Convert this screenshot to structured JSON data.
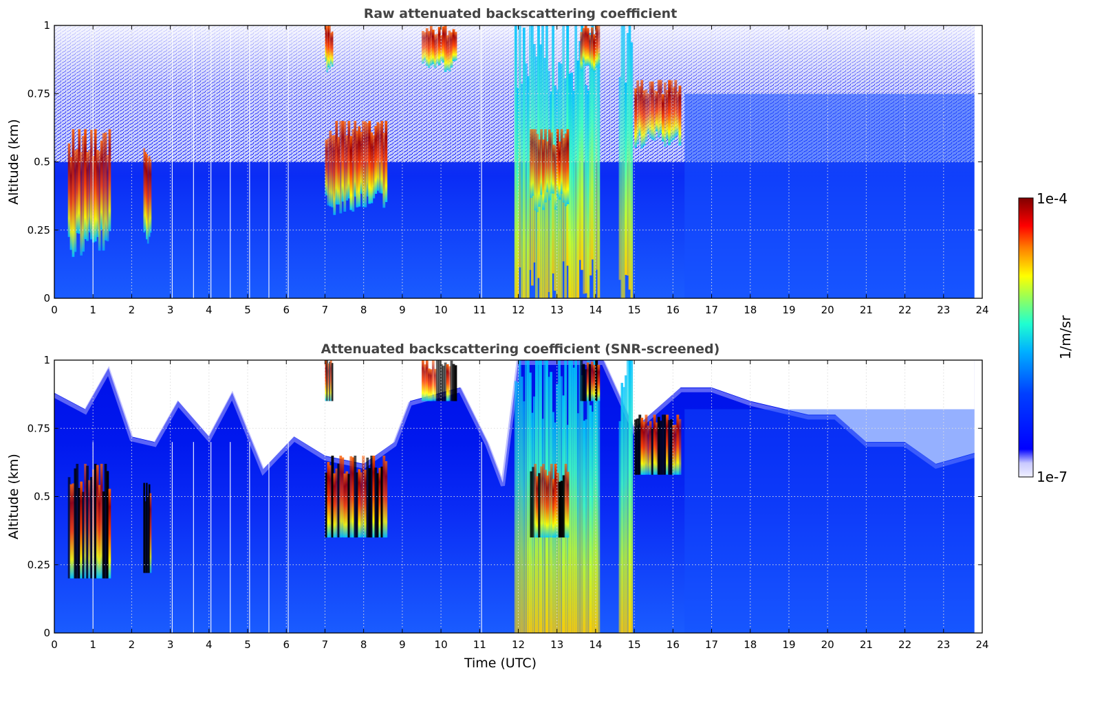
{
  "chart_data": [
    {
      "type": "heatmap",
      "title": "Raw attenuated backscattering coefficient",
      "xlabel": "",
      "ylabel": "Altitude (km)",
      "xlim": [
        0,
        24
      ],
      "ylim": [
        0,
        1
      ],
      "xticks": [
        "0",
        "1",
        "2",
        "3",
        "4",
        "5",
        "6",
        "7",
        "8",
        "9",
        "10",
        "11",
        "12",
        "13",
        "14",
        "15",
        "16",
        "17",
        "18",
        "19",
        "20",
        "21",
        "22",
        "23",
        "24"
      ],
      "yticks": [
        "0",
        "0.25",
        "0.5",
        "0.75",
        "1"
      ],
      "grid": true,
      "colormap": "jet",
      "data_end_time": 23.8,
      "features": [
        {
          "kind": "cloud",
          "t": [
            0.35,
            1.45
          ],
          "alt": [
            0.2,
            0.62
          ],
          "level": 0.8
        },
        {
          "kind": "cloud",
          "t": [
            2.3,
            2.5
          ],
          "alt": [
            0.22,
            0.55
          ],
          "level": 0.7
        },
        {
          "kind": "cloud",
          "t": [
            7.0,
            8.6
          ],
          "alt": [
            0.35,
            0.65
          ],
          "level": 0.95
        },
        {
          "kind": "cloud",
          "t": [
            7.0,
            7.2
          ],
          "alt": [
            0.85,
            1.0
          ],
          "level": 1.0
        },
        {
          "kind": "cloud",
          "t": [
            9.5,
            10.4
          ],
          "alt": [
            0.85,
            1.0
          ],
          "level": 1.0
        },
        {
          "kind": "precipitation",
          "t": [
            11.9,
            14.1
          ],
          "alt": [
            0.0,
            1.0
          ],
          "level": 0.75
        },
        {
          "kind": "cloud",
          "t": [
            12.3,
            13.3
          ],
          "alt": [
            0.35,
            0.62
          ],
          "level": 0.95
        },
        {
          "kind": "cloud",
          "t": [
            13.6,
            14.1
          ],
          "alt": [
            0.85,
            1.0
          ],
          "level": 1.0
        },
        {
          "kind": "precipitation",
          "t": [
            14.6,
            14.95
          ],
          "alt": [
            0.0,
            1.0
          ],
          "level": 0.75
        },
        {
          "kind": "cloud",
          "t": [
            15.0,
            16.2
          ],
          "alt": [
            0.58,
            0.8
          ],
          "level": 0.95
        }
      ]
    },
    {
      "type": "heatmap",
      "title": "Attenuated backscattering coefficient (SNR-screened)",
      "xlabel": "Time (UTC)",
      "ylabel": "Altitude (km)",
      "xlim": [
        0,
        24
      ],
      "ylim": [
        0,
        1
      ],
      "xticks": [
        "0",
        "1",
        "2",
        "3",
        "4",
        "5",
        "6",
        "7",
        "8",
        "9",
        "10",
        "11",
        "12",
        "13",
        "14",
        "15",
        "16",
        "17",
        "18",
        "19",
        "20",
        "21",
        "22",
        "23",
        "24"
      ],
      "yticks": [
        "0",
        "0.25",
        "0.5",
        "0.75",
        "1"
      ],
      "grid": true,
      "colormap": "jet",
      "data_end_time": 23.8,
      "screen_top_profile": [
        {
          "t": 0.0,
          "alt": 0.88
        },
        {
          "t": 0.8,
          "alt": 0.82
        },
        {
          "t": 1.4,
          "alt": 0.97
        },
        {
          "t": 2.0,
          "alt": 0.72
        },
        {
          "t": 2.6,
          "alt": 0.7
        },
        {
          "t": 3.2,
          "alt": 0.85
        },
        {
          "t": 4.0,
          "alt": 0.72
        },
        {
          "t": 4.6,
          "alt": 0.88
        },
        {
          "t": 5.4,
          "alt": 0.6
        },
        {
          "t": 6.2,
          "alt": 0.72
        },
        {
          "t": 7.0,
          "alt": 0.65
        },
        {
          "t": 8.0,
          "alt": 0.62
        },
        {
          "t": 8.8,
          "alt": 0.7
        },
        {
          "t": 9.2,
          "alt": 0.85
        },
        {
          "t": 10.5,
          "alt": 0.9
        },
        {
          "t": 11.2,
          "alt": 0.7
        },
        {
          "t": 11.6,
          "alt": 0.55
        },
        {
          "t": 12.0,
          "alt": 1.0
        },
        {
          "t": 14.2,
          "alt": 1.0
        },
        {
          "t": 15.0,
          "alt": 0.75
        },
        {
          "t": 16.2,
          "alt": 0.9
        },
        {
          "t": 17.0,
          "alt": 0.9
        },
        {
          "t": 18.0,
          "alt": 0.85
        },
        {
          "t": 19.5,
          "alt": 0.8
        },
        {
          "t": 20.2,
          "alt": 0.8
        },
        {
          "t": 21.0,
          "alt": 0.7
        },
        {
          "t": 22.0,
          "alt": 0.7
        },
        {
          "t": 22.8,
          "alt": 0.62
        },
        {
          "t": 23.8,
          "alt": 0.66
        }
      ]
    }
  ],
  "colorbar": {
    "min_label": "1e-7",
    "max_label": "1e-4",
    "label": "1/m/sr",
    "colormap": "jet"
  }
}
